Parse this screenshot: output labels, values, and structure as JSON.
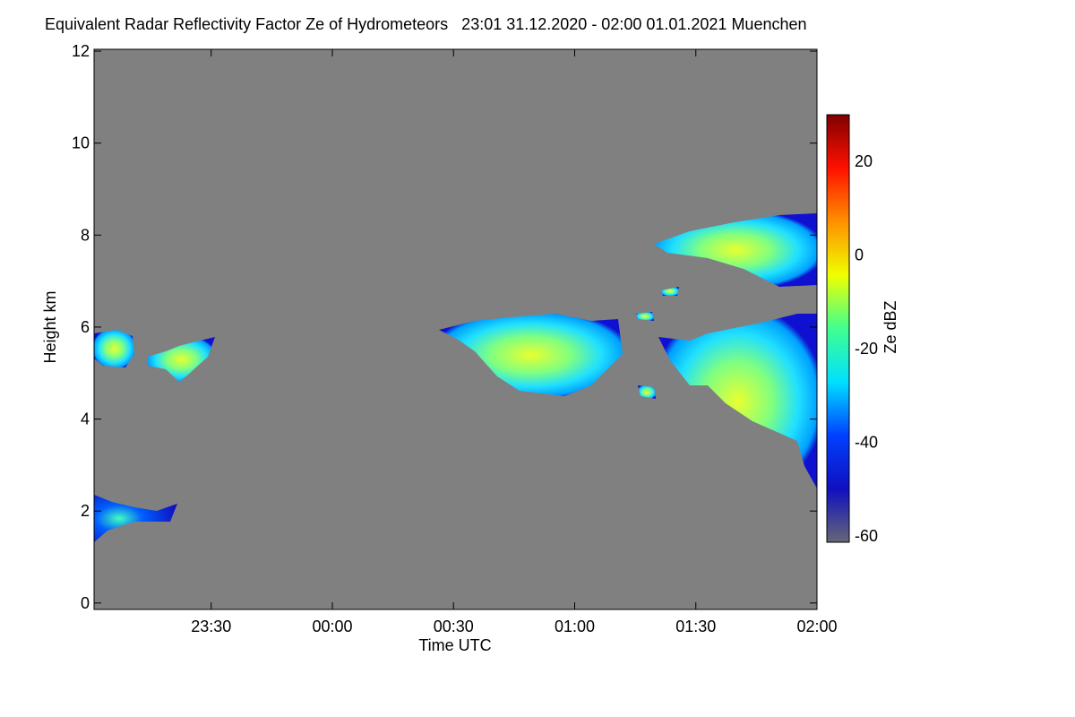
{
  "chart_data": {
    "type": "heatmap",
    "title": "Equivalent Radar Reflectivity Factor Ze of Hydrometeors   23:01 31.12.2020 - 02:00 01.01.2021 Muenchen",
    "xlabel": "Time UTC",
    "ylabel": "Height km",
    "colorbar_label": "Ze dBZ",
    "xlim": [
      1,
      180
    ],
    "xticks": [
      {
        "value": 30,
        "label": "23:30"
      },
      {
        "value": 60,
        "label": "00:00"
      },
      {
        "value": 90,
        "label": "00:30"
      },
      {
        "value": 120,
        "label": "01:00"
      },
      {
        "value": 150,
        "label": "01:30"
      },
      {
        "value": 180,
        "label": "02:00"
      }
    ],
    "ylim": [
      -0.14,
      12.04
    ],
    "yticks": [
      0,
      2,
      4,
      6,
      8,
      10,
      12
    ],
    "clim": [
      -61.3,
      30
    ],
    "cticks": [
      20,
      0,
      -20,
      -40,
      -60
    ],
    "background": "#808080",
    "colormap": [
      "#666677",
      "#1010c0",
      "#0040ff",
      "#00e0ff",
      "#40ff90",
      "#f0ff00",
      "#ff9000",
      "#ff1000",
      "#800000"
    ]
  }
}
